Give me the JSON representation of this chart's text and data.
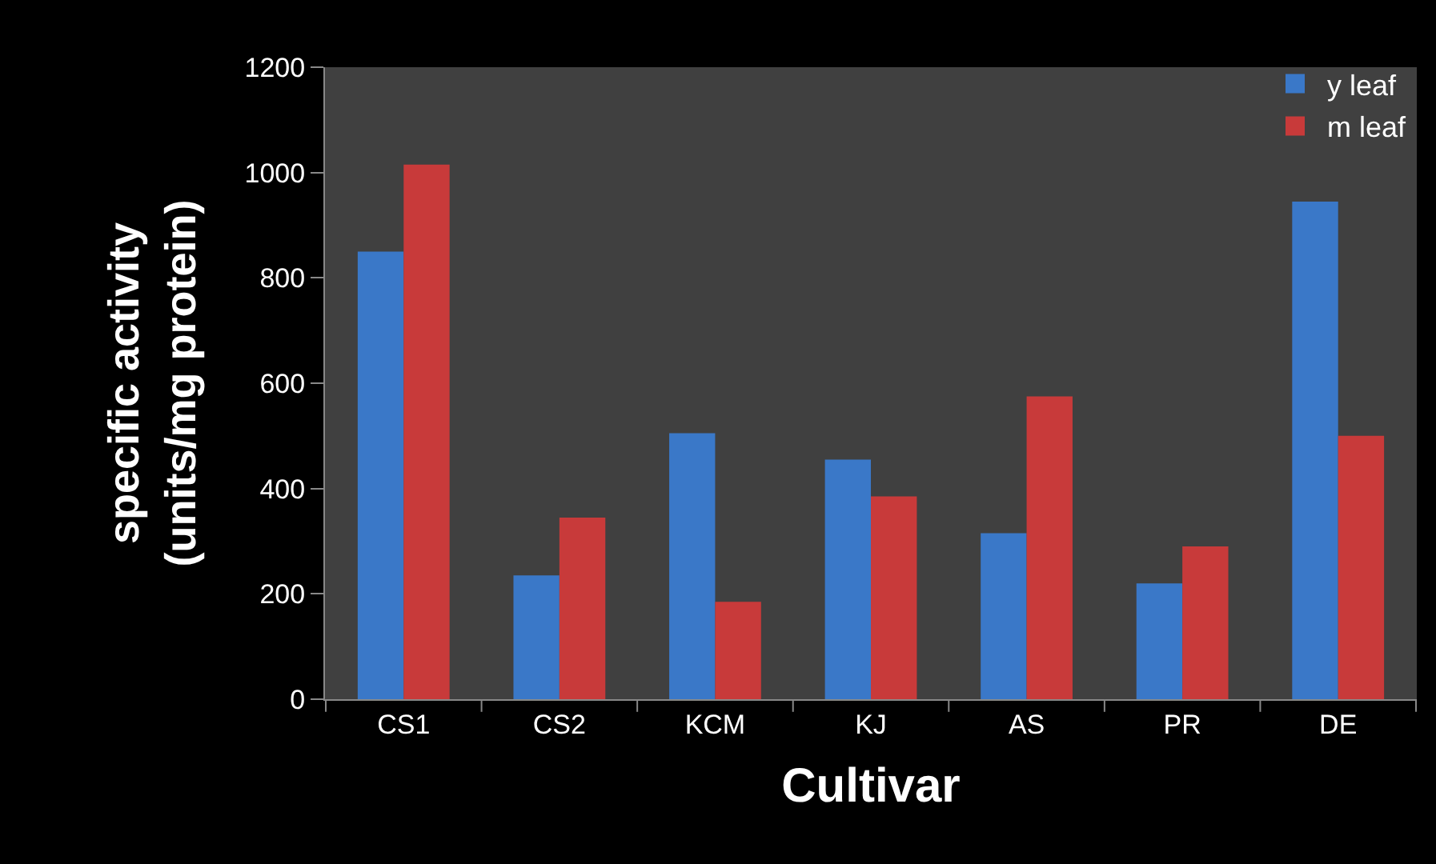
{
  "chart_data": {
    "type": "bar",
    "xlabel": "Cultivar",
    "ylabel": "specific activity\n(units/mg protein)",
    "categories": [
      "CS1",
      "CS2",
      "KCM",
      "KJ",
      "AS",
      "PR",
      "DE"
    ],
    "series": [
      {
        "name": "y leaf",
        "color": "#3a78c8",
        "values": [
          850,
          235,
          505,
          455,
          315,
          220,
          945
        ]
      },
      {
        "name": "m leaf",
        "color": "#c83a3a",
        "values": [
          1015,
          345,
          185,
          385,
          575,
          290,
          500
        ]
      }
    ],
    "ylim": [
      0,
      1200
    ],
    "yticks": [
      0,
      200,
      400,
      600,
      800,
      1000,
      1200
    ],
    "grid": false,
    "legend": "top right"
  }
}
